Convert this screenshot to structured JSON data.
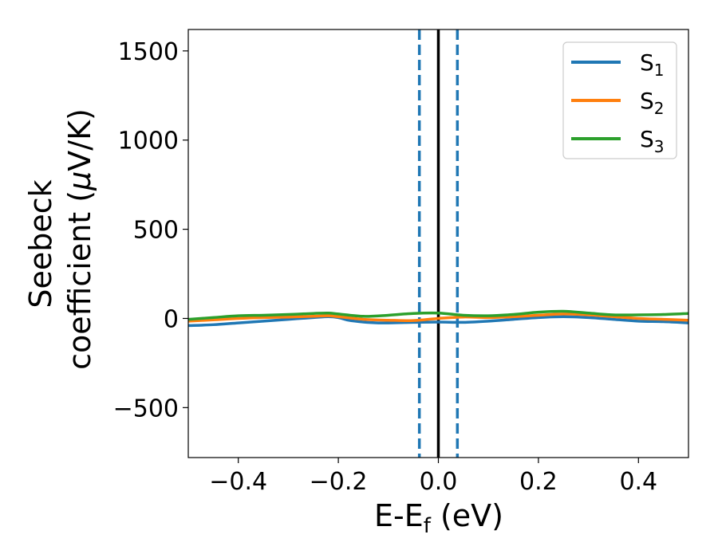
{
  "chart_data": {
    "type": "line",
    "title": "",
    "xlabel": {
      "main": "E-E",
      "sub": "f",
      "suffix": " (eV)"
    },
    "ylabel": {
      "line1": "Seebeck",
      "line2_prefix": "coefficient  (",
      "mu": "μ",
      "line2_suffix": "V/K)"
    },
    "xlim": [
      -0.5,
      0.5
    ],
    "ylim": [
      -780,
      1620
    ],
    "xticks": [
      -0.4,
      -0.2,
      0.0,
      0.2,
      0.4
    ],
    "xtick_labels": [
      "−0.4",
      "−0.2",
      "0.0",
      "0.2",
      "0.4"
    ],
    "yticks": [
      -500,
      0,
      500,
      1000,
      1500
    ],
    "ytick_labels": [
      "−500",
      "0",
      "500",
      "1000",
      "1500"
    ],
    "grid": false,
    "legend_position": "top-right",
    "vertical_lines": [
      {
        "x": -0.038,
        "style": "dashed",
        "color": "#1f77b4"
      },
      {
        "x": 0.038,
        "style": "dashed",
        "color": "#1f77b4"
      },
      {
        "x": 0.0,
        "style": "solid",
        "color": "#000000"
      }
    ],
    "series": [
      {
        "name": "S",
        "sub": "1",
        "color": "#1f77b4",
        "x": [
          -0.5,
          -0.45,
          -0.4,
          -0.35,
          -0.3,
          -0.25,
          -0.22,
          -0.2,
          -0.18,
          -0.15,
          -0.12,
          -0.1,
          -0.05,
          0.0,
          0.05,
          0.1,
          0.15,
          0.2,
          0.25,
          0.3,
          0.35,
          0.4,
          0.45,
          0.5
        ],
        "y": [
          -40,
          -35,
          -25,
          -15,
          -5,
          5,
          10,
          5,
          -10,
          -20,
          -25,
          -25,
          -22,
          -20,
          -22,
          -15,
          -5,
          5,
          10,
          5,
          -5,
          -15,
          -18,
          -25
        ]
      },
      {
        "name": "S",
        "sub": "2",
        "color": "#ff7f0e",
        "x": [
          -0.5,
          -0.45,
          -0.4,
          -0.35,
          -0.3,
          -0.25,
          -0.22,
          -0.2,
          -0.15,
          -0.1,
          -0.05,
          0.0,
          0.05,
          0.1,
          0.15,
          0.2,
          0.25,
          0.3,
          0.35,
          0.4,
          0.45,
          0.5
        ],
        "y": [
          -15,
          -8,
          0,
          5,
          8,
          12,
          15,
          10,
          -5,
          -10,
          -12,
          0,
          8,
          5,
          10,
          18,
          25,
          20,
          10,
          0,
          -5,
          -10
        ]
      },
      {
        "name": "S",
        "sub": "3",
        "color": "#2ca02c",
        "x": [
          -0.5,
          -0.45,
          -0.4,
          -0.35,
          -0.3,
          -0.25,
          -0.22,
          -0.2,
          -0.15,
          -0.1,
          -0.05,
          0.0,
          0.05,
          0.1,
          0.15,
          0.2,
          0.25,
          0.3,
          0.35,
          0.4,
          0.45,
          0.5
        ],
        "y": [
          -5,
          5,
          15,
          18,
          22,
          28,
          30,
          25,
          12,
          18,
          28,
          30,
          18,
          15,
          22,
          35,
          40,
          30,
          20,
          20,
          22,
          28
        ]
      }
    ]
  }
}
